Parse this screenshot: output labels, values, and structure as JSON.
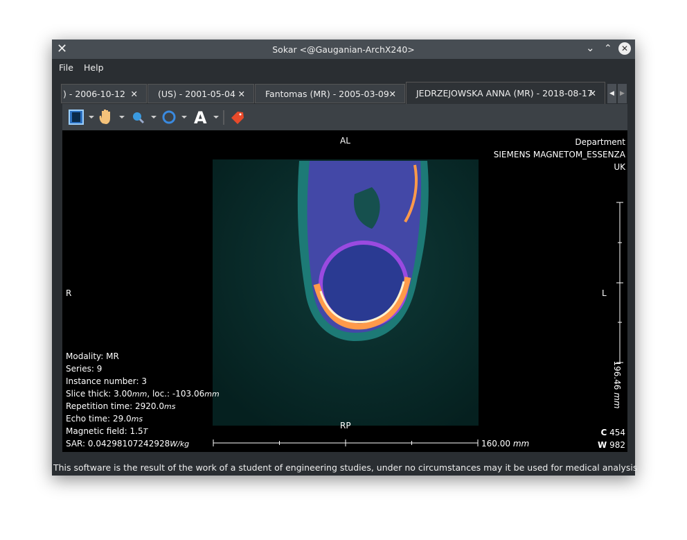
{
  "window": {
    "title": "Sokar <@Gauganian-ArchX240>"
  },
  "menu": [
    "File",
    "Help"
  ],
  "tabs": [
    ") - 2006-10-12",
    "(US) - 2001-05-04",
    "Fantomas (MR) - 2005-03-09",
    "JEDRZEJOWSKA ANNA (MR) - 2018-08-17"
  ],
  "viewer": {
    "orientation": {
      "top": "AL",
      "left": "R",
      "right": "L",
      "bottom": "RP"
    },
    "institution": [
      "Department",
      "SIEMENS MAGNETOM_ESSENZA",
      "UK"
    ],
    "info": [
      {
        "label": "Modality:",
        "value": "MR"
      },
      {
        "label": "Series:",
        "value": "9"
      },
      {
        "label": "Instance number:",
        "value": "3"
      },
      {
        "label": "Slice thick:",
        "value": "3.00",
        "unit": "mm",
        "label2": ", loc.:",
        "value2": "-103.06",
        "unit2": "mm"
      },
      {
        "label": "Repetition time:",
        "value": "2920.0",
        "unit": "ms"
      },
      {
        "label": "Echo time:",
        "value": "29.0",
        "unit": "ms"
      },
      {
        "label": "Magnetic field:",
        "value": "1.5",
        "unit": "T"
      },
      {
        "label": "SAR:",
        "value": "0.04298107242928",
        "unit": "W/kg"
      }
    ],
    "scale_x": {
      "value": "160.00",
      "unit": "mm"
    },
    "scale_y": {
      "value": "196.46",
      "unit": "mm"
    },
    "window_center": {
      "label": "C",
      "value": "454"
    },
    "window_width": {
      "label": "W",
      "value": "982"
    }
  },
  "status": "This software is the result of the work of a student of engineering studies, under no circumstances may it be used for medical analysis"
}
